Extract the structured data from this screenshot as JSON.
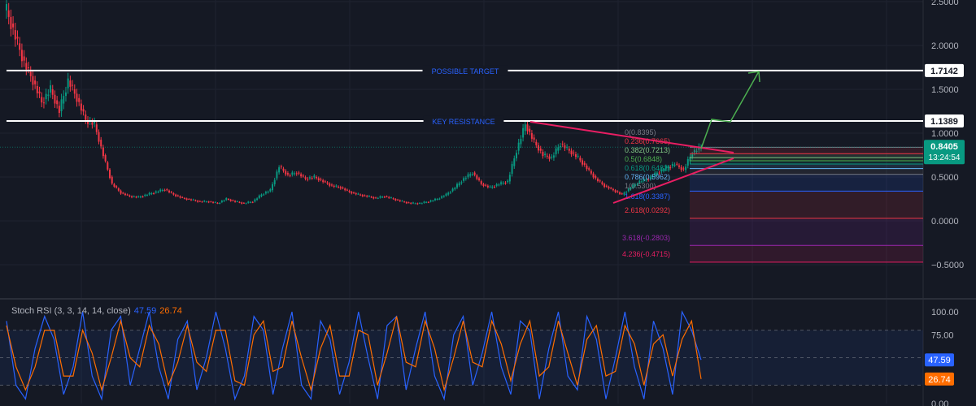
{
  "chart_data": [
    {
      "type": "candlestick",
      "price_axis": {
        "ticks": [
          "2.5000",
          "2.0000",
          "1.5000",
          "1.0000",
          "0.5000",
          "0.0000",
          "−0.5000"
        ],
        "tick_values": [
          2.5,
          2.0,
          1.5,
          1.0,
          0.5,
          0.0,
          -0.5
        ],
        "ylim": [
          -0.6,
          2.5
        ]
      },
      "close_series": [
        2.4,
        2.1,
        1.8,
        1.6,
        1.35,
        1.5,
        1.25,
        1.6,
        1.4,
        1.15,
        1.1,
        0.75,
        0.42,
        0.32,
        0.28,
        0.27,
        0.3,
        0.33,
        0.36,
        0.3,
        0.26,
        0.24,
        0.22,
        0.22,
        0.2,
        0.25,
        0.22,
        0.2,
        0.22,
        0.3,
        0.35,
        0.62,
        0.52,
        0.55,
        0.48,
        0.5,
        0.45,
        0.4,
        0.38,
        0.33,
        0.3,
        0.28,
        0.26,
        0.28,
        0.25,
        0.22,
        0.2,
        0.2,
        0.22,
        0.25,
        0.3,
        0.38,
        0.48,
        0.55,
        0.42,
        0.38,
        0.42,
        0.45,
        0.8,
        1.1,
        0.9,
        0.75,
        0.72,
        0.88,
        0.8,
        0.72,
        0.6,
        0.48,
        0.4,
        0.35,
        0.3,
        0.38,
        0.45,
        0.48,
        0.55,
        0.6,
        0.65,
        0.58,
        0.78,
        0.84
      ],
      "last_price": "0.8405",
      "countdown": "13:24:54",
      "horizontal_levels": [
        {
          "label": "POSSIBLE TARGET",
          "value": 1.7142,
          "badge": "1.7142"
        },
        {
          "label": "KEY RESISTANCE",
          "value": 1.1389,
          "badge": "1.1389"
        }
      ],
      "fib_levels": [
        {
          "label": "0(0.8395)",
          "value": 0.8395,
          "color": "#787b86"
        },
        {
          "label": "0.236(0.7665)",
          "value": 0.7665,
          "color": "#f23645"
        },
        {
          "label": "0.382(0.7213)",
          "value": 0.7213,
          "color": "#81c784"
        },
        {
          "label": "0.5(0.6848)",
          "value": 0.6848,
          "color": "#4caf50"
        },
        {
          "label": "0.618(0.6482)",
          "value": 0.6482,
          "color": "#089981"
        },
        {
          "label": "0.786(0.5962)",
          "value": 0.5962,
          "color": "#64b5f6"
        },
        {
          "label": "1(0.5300)",
          "value": 0.53,
          "color": "#787b86"
        },
        {
          "label": "1.618(0.3387)",
          "value": 0.3387,
          "color": "#2962ff"
        },
        {
          "label": "2.618(0.0292)",
          "value": 0.0292,
          "color": "#f23645"
        },
        {
          "label": "3.618(-0.2803)",
          "value": -0.2803,
          "color": "#9c27b0"
        },
        {
          "label": "4.236(-0.4715)",
          "value": -0.4715,
          "color": "#e91e63"
        }
      ],
      "colors": {
        "up": "#089981",
        "down": "#f23645",
        "trendline": "#e91e63",
        "projection": "#4caf50",
        "last_price": "#089981"
      }
    },
    {
      "type": "line",
      "title": "Stoch RSI (3, 3, 14, 14, close)",
      "k_value": "47.59",
      "d_value": "26.74",
      "axis": {
        "ticks": [
          "100.00",
          "75.00",
          "0.00"
        ],
        "tick_values": [
          100,
          75,
          0
        ],
        "ylim": [
          0,
          100
        ]
      },
      "bands": [
        20,
        80
      ],
      "series": [
        {
          "key": "K",
          "color": "#2962ff",
          "values": [
            90,
            20,
            5,
            60,
            95,
            70,
            10,
            40,
            100,
            30,
            5,
            80,
            95,
            20,
            60,
            100,
            40,
            5,
            70,
            90,
            15,
            50,
            100,
            60,
            5,
            30,
            95,
            80,
            10,
            60,
            100,
            20,
            5,
            90,
            70,
            10,
            45,
            100,
            50,
            5,
            85,
            95,
            15,
            60,
            100,
            30,
            5,
            75,
            95,
            20,
            55,
            100,
            40,
            10,
            90,
            80,
            5,
            60,
            100,
            30,
            15,
            95,
            70,
            5,
            50,
            100,
            40,
            5,
            90,
            60,
            10,
            100,
            80,
            47.59
          ]
        },
        {
          "key": "D",
          "color": "#ff6d00",
          "values": [
            85,
            40,
            15,
            40,
            80,
            80,
            30,
            30,
            80,
            55,
            15,
            50,
            90,
            50,
            40,
            85,
            65,
            20,
            45,
            85,
            45,
            35,
            80,
            80,
            25,
            20,
            75,
            90,
            35,
            40,
            90,
            50,
            15,
            60,
            85,
            30,
            30,
            80,
            75,
            20,
            55,
            95,
            45,
            40,
            90,
            60,
            15,
            50,
            90,
            45,
            40,
            90,
            65,
            25,
            65,
            90,
            30,
            40,
            90,
            55,
            20,
            70,
            85,
            30,
            35,
            85,
            65,
            20,
            65,
            75,
            30,
            70,
            90,
            26.74
          ]
        }
      ]
    }
  ]
}
